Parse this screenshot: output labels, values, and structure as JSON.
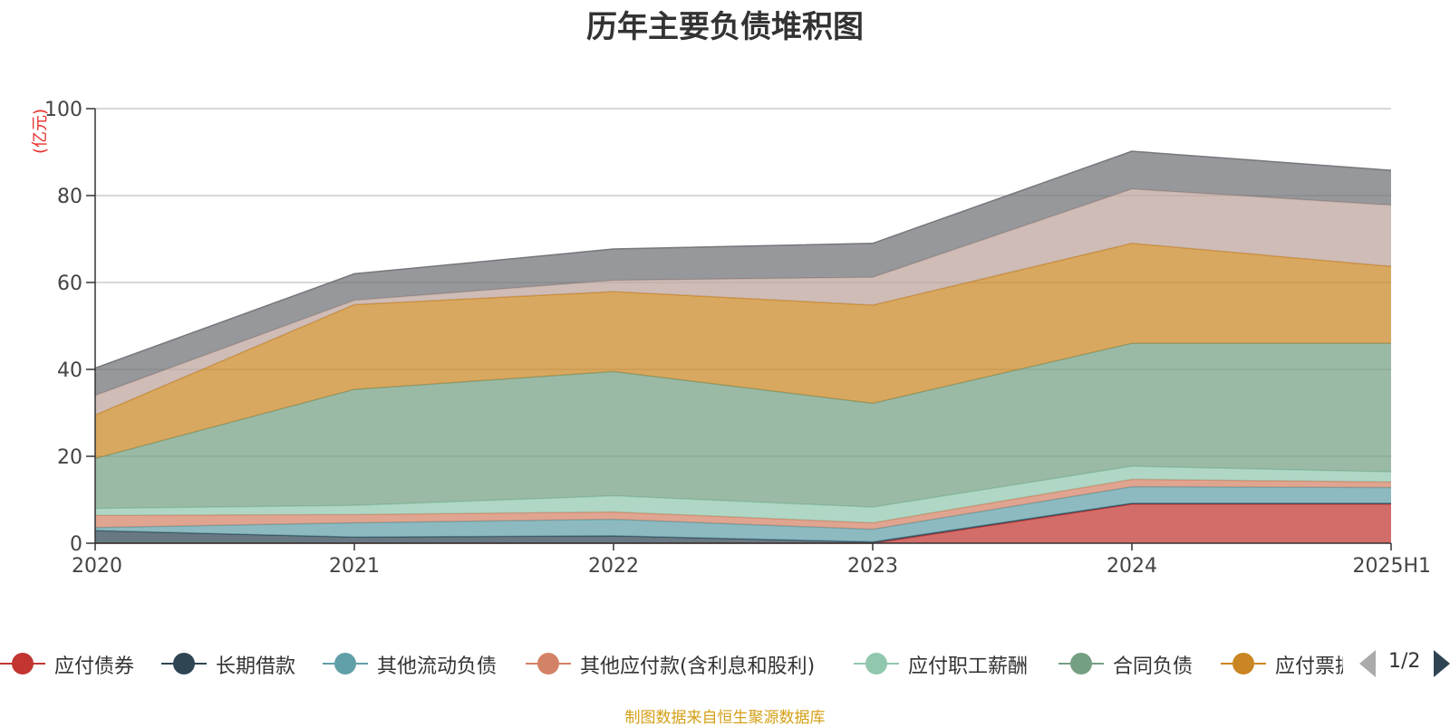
{
  "chart_data": {
    "type": "area",
    "stacked": true,
    "title": "历年主要负债堆积图",
    "unit_label": "(亿元)",
    "categories": [
      "2020",
      "2021",
      "2022",
      "2023",
      "2024",
      "2025H1"
    ],
    "ylim": [
      0,
      100
    ],
    "yticks": [
      0,
      20,
      40,
      60,
      80,
      100
    ],
    "grid": true,
    "series": [
      {
        "name": "应付债券",
        "color": "#c23531",
        "values": [
          0,
          0,
          0,
          0,
          9.0,
          9.0
        ]
      },
      {
        "name": "长期借款",
        "color": "#2f4554",
        "values": [
          2.9,
          1.4,
          1.7,
          0.3,
          0.2,
          0.2
        ]
      },
      {
        "name": "其他流动负债",
        "color": "#61a0a8",
        "values": [
          0.7,
          3.3,
          3.8,
          2.9,
          3.8,
          3.6
        ]
      },
      {
        "name": "其他应付款(含利息和股利)",
        "color": "#d48265",
        "values": [
          2.8,
          1.9,
          1.7,
          1.5,
          1.7,
          1.3
        ]
      },
      {
        "name": "应付职工薪酬",
        "color": "#91c7ae",
        "values": [
          1.6,
          2.1,
          3.7,
          3.6,
          3.0,
          2.3
        ]
      },
      {
        "name": "合同负债",
        "color": "#749f83",
        "values": [
          11.5,
          26.7,
          28.6,
          23.9,
          28.3,
          29.6
        ]
      },
      {
        "name": "应付票据",
        "color": "#ca8622",
        "values": [
          10.0,
          19.5,
          18.4,
          22.6,
          23.0,
          17.7
        ]
      },
      {
        "name": "",
        "color": "#bda29a",
        "values": [
          4.5,
          1.0,
          2.6,
          6.4,
          12.5,
          14.1
        ]
      },
      {
        "name": "",
        "color": "#6e7074",
        "values": [
          6.3,
          6.1,
          7.2,
          7.8,
          8.7,
          8.0
        ]
      }
    ]
  },
  "legend": {
    "items": [
      {
        "label": "应付债券",
        "color": "#c23531"
      },
      {
        "label": "长期借款",
        "color": "#2f4554"
      },
      {
        "label": "其他流动负债",
        "color": "#61a0a8"
      },
      {
        "label": "其他应付款(含利息和股利)",
        "color": "#d48265"
      },
      {
        "label": "应付职工薪酬",
        "color": "#91c7ae"
      },
      {
        "label": "合同负债",
        "color": "#749f83"
      },
      {
        "label": "应付票据",
        "color": "#ca8622"
      }
    ],
    "page_indicator": "1/2"
  },
  "footer": {
    "source": "制图数据来自恒生聚源数据库"
  }
}
